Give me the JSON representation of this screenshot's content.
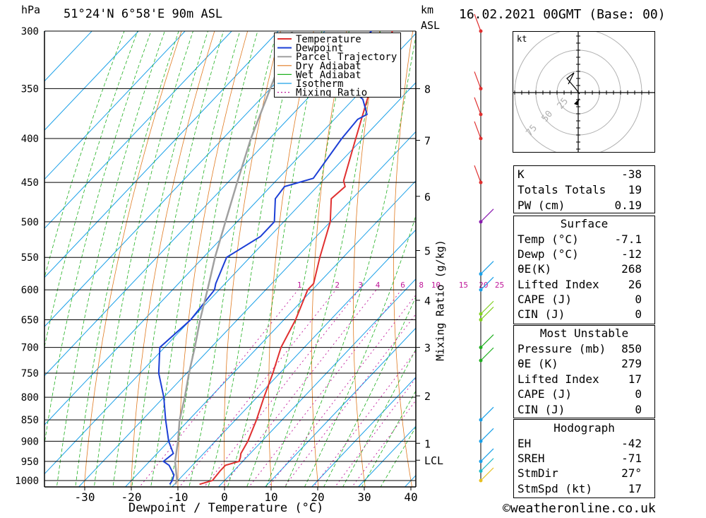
{
  "header": {
    "pressure_unit": "hPa",
    "location": "51°24'N 6°58'E 90m ASL",
    "height_unit_km": "km",
    "height_unit_asl": "ASL",
    "datetime": "16.02.2021 00GMT (Base: 00)"
  },
  "chart_data": {
    "type": "line",
    "subtype": "skew-T log-P",
    "xlabel": "Dewpoint / Temperature (°C)",
    "ylabel": "hPa",
    "y2label": "Mixing Ratio (g/kg)",
    "pressure_levels": [
      300,
      350,
      400,
      450,
      500,
      550,
      600,
      650,
      700,
      750,
      800,
      850,
      900,
      950,
      1000
    ],
    "x_ticks": [
      -30,
      -20,
      -10,
      0,
      10,
      20,
      30,
      40
    ],
    "x_range_at_1000hPa": [
      -38,
      40
    ],
    "y_range": [
      1000,
      300
    ],
    "km_ticks": [
      {
        "label": "8",
        "p": 350
      },
      {
        "label": "7",
        "p": 402
      },
      {
        "label": "6",
        "p": 467
      },
      {
        "label": "5",
        "p": 540
      },
      {
        "label": "4",
        "p": 617
      },
      {
        "label": "3",
        "p": 700
      },
      {
        "label": "2",
        "p": 797
      },
      {
        "label": "1",
        "p": 905
      },
      {
        "label": "LCL",
        "p": 947
      }
    ],
    "mixing_ratio_labels": [
      "1",
      "2",
      "3",
      "4",
      "6",
      "8",
      "10",
      "15",
      "20",
      "25"
    ],
    "legend": [
      "Temperature",
      "Dewpoint",
      "Parcel Trajectory",
      "Dry Adiabat",
      "Wet Adiabat",
      "Isotherm",
      "Mixing Ratio"
    ],
    "colors": {
      "temperature": "#e03030",
      "dewpoint": "#1c3fd6",
      "parcel": "#a0a0a0",
      "dry_adiabat": "#e07a20",
      "wet_adiabat": "#20b020",
      "isotherm": "#1aa0e8",
      "mixing_ratio": "#c0189a"
    },
    "series": [
      {
        "name": "Temperature",
        "points": [
          [
            1010,
            -4.6
          ],
          [
            1000,
            -2.6
          ],
          [
            975,
            -2.9
          ],
          [
            960,
            -2.9
          ],
          [
            950,
            -0.8
          ],
          [
            940,
            -1.3
          ],
          [
            930,
            -2.0
          ],
          [
            900,
            -3.0
          ],
          [
            850,
            -5.5
          ],
          [
            800,
            -8.5
          ],
          [
            750,
            -11.5
          ],
          [
            700,
            -15.0
          ],
          [
            650,
            -17.5
          ],
          [
            600,
            -21.0
          ],
          [
            590,
            -21.0
          ],
          [
            550,
            -25.0
          ],
          [
            500,
            -30.0
          ],
          [
            470,
            -34.5
          ],
          [
            455,
            -34.0
          ],
          [
            448,
            -35.5
          ],
          [
            400,
            -41.5
          ],
          [
            350,
            -48.5
          ],
          [
            300,
            -55.5
          ]
        ]
      },
      {
        "name": "Dewpoint",
        "points": [
          [
            1010,
            -11.0
          ],
          [
            1000,
            -11.2
          ],
          [
            985,
            -12.0
          ],
          [
            960,
            -15.0
          ],
          [
            950,
            -17.0
          ],
          [
            930,
            -16.5
          ],
          [
            900,
            -20.0
          ],
          [
            850,
            -25.0
          ],
          [
            800,
            -30.0
          ],
          [
            750,
            -36.0
          ],
          [
            700,
            -41.0
          ],
          [
            650,
            -40.0
          ],
          [
            600,
            -41.0
          ],
          [
            590,
            -42.0
          ],
          [
            550,
            -45.0
          ],
          [
            520,
            -42.0
          ],
          [
            500,
            -42.0
          ],
          [
            470,
            -46.5
          ],
          [
            455,
            -47.0
          ],
          [
            445,
            -42.5
          ],
          [
            400,
            -44.5
          ],
          [
            380,
            -45.0
          ],
          [
            375,
            -44.0
          ],
          [
            360,
            -48.0
          ],
          [
            350,
            -53.0
          ],
          [
            340,
            -56.0
          ],
          [
            330,
            -52.0
          ],
          [
            310,
            -60.0
          ],
          [
            300,
            -60.0
          ]
        ]
      },
      {
        "name": "Parcel Trajectory",
        "points": [
          [
            1010,
            -9.8
          ],
          [
            1000,
            -10.2
          ],
          [
            950,
            -14.5
          ],
          [
            900,
            -18.0
          ],
          [
            850,
            -22.0
          ],
          [
            800,
            -25.5
          ],
          [
            750,
            -29.5
          ],
          [
            700,
            -33.5
          ],
          [
            650,
            -38.0
          ],
          [
            600,
            -42.5
          ],
          [
            550,
            -47.5
          ],
          [
            500,
            -52.5
          ],
          [
            450,
            -58.0
          ],
          [
            400,
            -64.0
          ],
          [
            350,
            -70.0
          ],
          [
            300,
            -77.0
          ]
        ]
      }
    ]
  },
  "hodograph": {
    "unit": "kt",
    "ring_labels": [
      "25",
      "50",
      "75"
    ]
  },
  "indices": {
    "top": [
      {
        "label": "K",
        "value": "-38"
      },
      {
        "label": "Totals Totals",
        "value": "19"
      },
      {
        "label": "PW (cm)",
        "value": "0.19"
      }
    ],
    "surface": {
      "title": "Surface",
      "rows": [
        {
          "label": "Temp (°C)",
          "value": "-7.1"
        },
        {
          "label": "Dewp (°C)",
          "value": "-12"
        },
        {
          "label": "θE(K)",
          "value": "268"
        },
        {
          "label": "Lifted Index",
          "value": "26"
        },
        {
          "label": "CAPE (J)",
          "value": "0"
        },
        {
          "label": "CIN (J)",
          "value": "0"
        }
      ]
    },
    "most_unstable": {
      "title": "Most Unstable",
      "rows": [
        {
          "label": "Pressure (mb)",
          "value": "850"
        },
        {
          "label": "θE (K)",
          "value": "279"
        },
        {
          "label": "Lifted Index",
          "value": "17"
        },
        {
          "label": "CAPE (J)",
          "value": "0"
        },
        {
          "label": "CIN (J)",
          "value": "0"
        }
      ]
    },
    "hodograph": {
      "title": "Hodograph",
      "rows": [
        {
          "label": "EH",
          "value": "-42"
        },
        {
          "label": "SREH",
          "value": "-71"
        },
        {
          "label": "StmDir",
          "value": "27°"
        },
        {
          "label": "StmSpd (kt)",
          "value": "17"
        }
      ]
    }
  },
  "footer": {
    "credit": "©weatheronline.co.uk"
  }
}
